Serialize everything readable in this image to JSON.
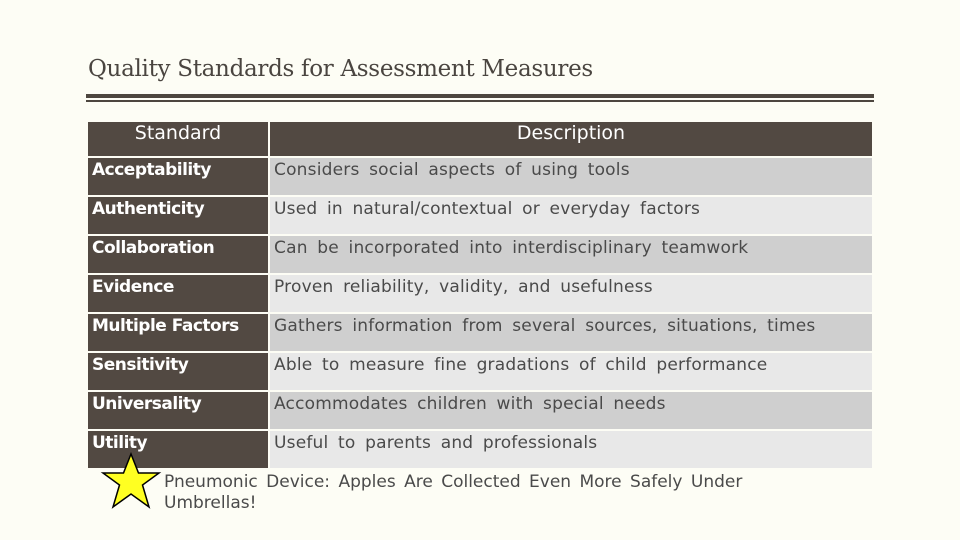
{
  "title": "Quality Standards for Assessment Measures",
  "table": {
    "headers": [
      "Standard",
      "Description"
    ],
    "rows": [
      {
        "standard": "Acceptability",
        "description": "Considers social aspects of using tools"
      },
      {
        "standard": "Authenticity",
        "description": "Used in natural/contextual or everyday factors"
      },
      {
        "standard": "Collaboration",
        "description": "Can be incorporated into interdisciplinary teamwork"
      },
      {
        "standard": "Evidence",
        "description": "Proven reliability, validity, and usefulness"
      },
      {
        "standard": "Multiple Factors",
        "description": "Gathers information from several sources, situations, times"
      },
      {
        "standard": "Sensitivity",
        "description": "Able to measure fine gradations of child performance"
      },
      {
        "standard": "Universality",
        "description": "Accommodates children with special needs"
      },
      {
        "standard": "Utility",
        "description": "Useful to parents and professionals"
      }
    ]
  },
  "note": {
    "icon": "star-icon",
    "text": "Pneumonic Device: Apples Are Collected Even More Safely Under Umbrellas!"
  },
  "colors": {
    "header": "#524942",
    "row_dark": "#cfcfcf",
    "row_light": "#e8e8e8",
    "star": "#ffff22",
    "background": "#fdfdf5"
  }
}
